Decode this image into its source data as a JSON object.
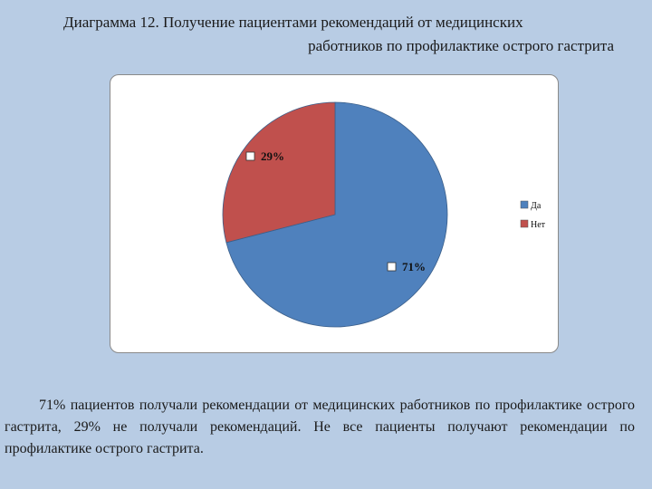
{
  "title": {
    "line1": "Диаграмма 12. Получение пациентами  рекомендаций от медицинских",
    "line2": "работников по профилактике острого гастрита"
  },
  "chart_data": {
    "type": "pie",
    "categories": [
      "Да",
      "Нет"
    ],
    "values": [
      71,
      29
    ],
    "labels": [
      "71%",
      "29%"
    ],
    "colors": [
      "#4f81bd",
      "#c0504d"
    ],
    "legend_position": "right"
  },
  "caption": "71% пациентов получали рекомендации от медицинских работников по профилактике острого гастрита, 29% не получали рекомендаций. Не все пациенты получают рекомендации по профилактике острого гастрита."
}
